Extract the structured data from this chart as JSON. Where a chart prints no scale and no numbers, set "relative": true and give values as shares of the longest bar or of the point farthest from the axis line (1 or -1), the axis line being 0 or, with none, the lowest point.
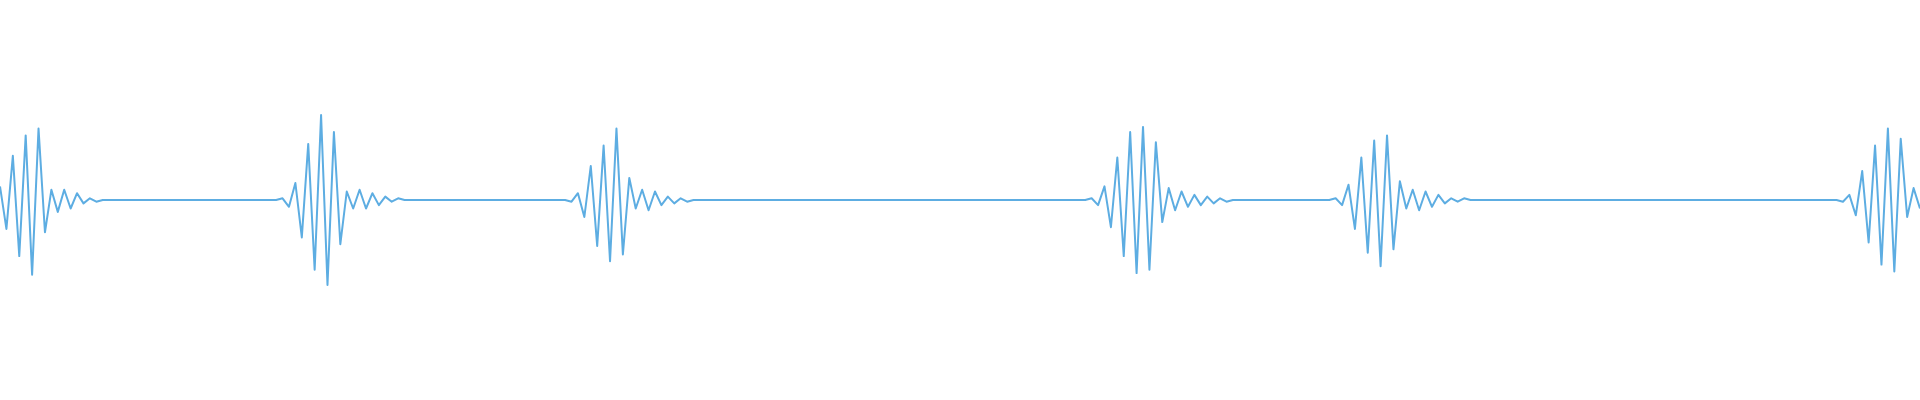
{
  "chart_data": {
    "type": "line",
    "relative": true,
    "categories": [
      null,
      null,
      null,
      null,
      null,
      null,
      null,
      null,
      null,
      null,
      null,
      null,
      null,
      null,
      null,
      null,
      null,
      null,
      null,
      null,
      null,
      null,
      null,
      null,
      null,
      null,
      null,
      null,
      null,
      null,
      null,
      null,
      null,
      null,
      null,
      null,
      null,
      null,
      null,
      null,
      null,
      null,
      null,
      null,
      null,
      null,
      null,
      null,
      null,
      null,
      null,
      null,
      null,
      null,
      null,
      null,
      null,
      null,
      null,
      null,
      null,
      null,
      null,
      null,
      null,
      null,
      null,
      null,
      null,
      null,
      null,
      null,
      null,
      null,
      null,
      null,
      null,
      null,
      null,
      null,
      null,
      null,
      null,
      null,
      null,
      null,
      null,
      null,
      null,
      null,
      null,
      null,
      null,
      null,
      null,
      null,
      null,
      null,
      null,
      null,
      null,
      null,
      null,
      null,
      null,
      null,
      null,
      null,
      null,
      null,
      null,
      null,
      null,
      null,
      null,
      null,
      null,
      null,
      null,
      null,
      null,
      null,
      null,
      null,
      null,
      null,
      null,
      null,
      null,
      null,
      null,
      null,
      null,
      null,
      null,
      null,
      null,
      null,
      null,
      null,
      null,
      null,
      null,
      null,
      null,
      null,
      null,
      null,
      null,
      null,
      null,
      null,
      null,
      null,
      null,
      null,
      null,
      null,
      null,
      null,
      null,
      null,
      null,
      null,
      null,
      null,
      null,
      null,
      null,
      null,
      null,
      null,
      null,
      null,
      null,
      null,
      null,
      null,
      null,
      null,
      null,
      null,
      null,
      null,
      null,
      null,
      null,
      null,
      null,
      null,
      null,
      null,
      null,
      null,
      null,
      null,
      null,
      null,
      null,
      null,
      null,
      null,
      null,
      null,
      null,
      null,
      null,
      null,
      null,
      null,
      null,
      null,
      null,
      null,
      null,
      null,
      null,
      null,
      null,
      null,
      null,
      null,
      null,
      null,
      null,
      null,
      null,
      null,
      null,
      null,
      null,
      null,
      null,
      null,
      null,
      null,
      null,
      null,
      null,
      null,
      null,
      null,
      null,
      null,
      null,
      null,
      null,
      null,
      null,
      null,
      null,
      null,
      null,
      null,
      null,
      null,
      null,
      null,
      null,
      null,
      null,
      null,
      null,
      null,
      null,
      null,
      null,
      null,
      null,
      null,
      null,
      null,
      null,
      null,
      null,
      null,
      null,
      null,
      null,
      null,
      null,
      null,
      null,
      null,
      null,
      null,
      null,
      null,
      null,
      null,
      null,
      null,
      null,
      null,
      null,
      null,
      null,
      null,
      null,
      null
    ],
    "series": [
      {
        "color": "#5dade2",
        "values": [
          0.58,
          0.33,
          0.76,
          0.17,
          0.88,
          0.06,
          0.92,
          0.31,
          0.56,
          0.43,
          0.56,
          0.45,
          0.54,
          0.48,
          0.51,
          0.49,
          0.5,
          0.5,
          0.5,
          0.5,
          0.5,
          0.5,
          0.5,
          0.5,
          0.5,
          0.5,
          0.5,
          0.5,
          0.5,
          0.5,
          0.5,
          0.5,
          0.5,
          0.5,
          0.5,
          0.5,
          0.5,
          0.5,
          0.5,
          0.5,
          0.5,
          0.5,
          0.5,
          0.5,
          0.51,
          0.46,
          0.6,
          0.28,
          0.83,
          0.09,
          1,
          0,
          0.9,
          0.24,
          0.55,
          0.45,
          0.56,
          0.45,
          0.54,
          0.47,
          0.52,
          0.49,
          0.51,
          0.5,
          0.5,
          0.5,
          0.5,
          0.5,
          0.5,
          0.5,
          0.5,
          0.5,
          0.5,
          0.5,
          0.5,
          0.5,
          0.5,
          0.5,
          0.5,
          0.5,
          0.5,
          0.5,
          0.5,
          0.5,
          0.5,
          0.5,
          0.5,
          0.5,
          0.5,
          0.49,
          0.54,
          0.4,
          0.7,
          0.23,
          0.82,
          0.14,
          0.92,
          0.18,
          0.63,
          0.45,
          0.56,
          0.44,
          0.55,
          0.47,
          0.52,
          0.48,
          0.51,
          0.49,
          0.5,
          0.5,
          0.5,
          0.5,
          0.5,
          0.5,
          0.5,
          0.5,
          0.5,
          0.5,
          0.5,
          0.5,
          0.5,
          0.5,
          0.5,
          0.5,
          0.5,
          0.5,
          0.5,
          0.5,
          0.5,
          0.5,
          0.5,
          0.5,
          0.5,
          0.5,
          0.5,
          0.5,
          0.5,
          0.5,
          0.5,
          0.5,
          0.5,
          0.5,
          0.5,
          0.5,
          0.5,
          0.5,
          0.5,
          0.5,
          0.5,
          0.5,
          0.5,
          0.5,
          0.5,
          0.5,
          0.5,
          0.5,
          0.5,
          0.5,
          0.5,
          0.5,
          0.5,
          0.5,
          0.5,
          0.5,
          0.5,
          0.5,
          0.5,
          0.5,
          0.5,
          0.5,
          0.51,
          0.47,
          0.58,
          0.34,
          0.75,
          0.17,
          0.9,
          0.07,
          0.93,
          0.09,
          0.84,
          0.37,
          0.57,
          0.44,
          0.55,
          0.46,
          0.53,
          0.47,
          0.52,
          0.48,
          0.51,
          0.49,
          0.5,
          0.5,
          0.5,
          0.5,
          0.5,
          0.5,
          0.5,
          0.5,
          0.5,
          0.5,
          0.5,
          0.5,
          0.5,
          0.5,
          0.5,
          0.5,
          0.51,
          0.47,
          0.59,
          0.33,
          0.75,
          0.19,
          0.85,
          0.11,
          0.88,
          0.21,
          0.61,
          0.45,
          0.56,
          0.44,
          0.55,
          0.46,
          0.53,
          0.48,
          0.51,
          0.49,
          0.51,
          0.5,
          0.5,
          0.5,
          0.5,
          0.5,
          0.5,
          0.5,
          0.5,
          0.5,
          0.5,
          0.5,
          0.5,
          0.5,
          0.5,
          0.5,
          0.5,
          0.5,
          0.5,
          0.5,
          0.5,
          0.5,
          0.5,
          0.5,
          0.5,
          0.5,
          0.5,
          0.5,
          0.5,
          0.5,
          0.5,
          0.5,
          0.5,
          0.5,
          0.5,
          0.5,
          0.5,
          0.5,
          0.5,
          0.5,
          0.5,
          0.5,
          0.5,
          0.5,
          0.5,
          0.5,
          0.5,
          0.5,
          0.5,
          0.5,
          0.5,
          0.5,
          0.5,
          0.5,
          0.5,
          0.5,
          0.5,
          0.5,
          0.5,
          0.49,
          0.53,
          0.41,
          0.67,
          0.25,
          0.82,
          0.12,
          0.92,
          0.08,
          0.86,
          0.4,
          0.57,
          0.45
        ]
      }
    ]
  }
}
